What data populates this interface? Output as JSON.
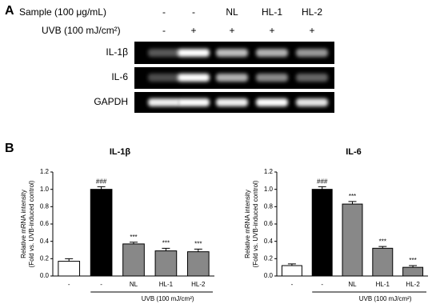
{
  "panel_a": {
    "label": "A",
    "sample_label": "Sample (100 μg/mL)",
    "sample_values": [
      "-",
      "-",
      "NL",
      "HL-1",
      "HL-2"
    ],
    "uvb_label": "UVB (100 mJ/cm²)",
    "uvb_values": [
      "-",
      "+",
      "+",
      "+",
      "+"
    ],
    "rows": [
      "IL-1β",
      "IL-6",
      "GAPDH"
    ]
  },
  "panel_b": {
    "label": "B"
  },
  "chart_data": [
    {
      "type": "bar",
      "title": "IL-1β",
      "categories": [
        "-",
        "-",
        "NL",
        "HL-1",
        "HL-2"
      ],
      "values": [
        0.17,
        1.0,
        0.37,
        0.29,
        0.28
      ],
      "errors": [
        0.03,
        0.03,
        0.02,
        0.03,
        0.03
      ],
      "colors": [
        "#ffffff",
        "#000000",
        "#888888",
        "#888888",
        "#888888"
      ],
      "annotations": [
        null,
        "###",
        "***",
        "***",
        "***"
      ],
      "xlabel": "UVB (100 mJ/cm²)",
      "ylabel": [
        "Relative mRNA intensity",
        "(Fold vs. UVB-induced control)"
      ],
      "ylim": [
        0,
        1.2
      ],
      "yticks": [
        {
          "value": 0,
          "label": "0.0"
        },
        0.2,
        0.4,
        0.6,
        0.8,
        {
          "value": 1,
          "label": "1.0"
        },
        1.2
      ]
    },
    {
      "type": "bar",
      "title": "IL-6",
      "categories": [
        "-",
        "-",
        "NL",
        "HL-1",
        "HL-2"
      ],
      "values": [
        0.12,
        1.0,
        0.83,
        0.32,
        0.1
      ],
      "errors": [
        0.02,
        0.03,
        0.03,
        0.02,
        0.02
      ],
      "colors": [
        "#ffffff",
        "#000000",
        "#888888",
        "#888888",
        "#888888"
      ],
      "annotations": [
        null,
        "###",
        "***",
        "***",
        "***"
      ],
      "xlabel": "UVB (100 mJ/cm²)",
      "ylabel": [
        "Relative mRNA intensity",
        "(Fold vs. UVB-induced control)"
      ],
      "ylim": [
        0,
        1.2
      ],
      "yticks": [
        {
          "value": 0,
          "label": "0.0"
        },
        0.2,
        0.4,
        0.6,
        0.8,
        {
          "value": 1,
          "label": "1.0"
        },
        1.2
      ]
    }
  ]
}
